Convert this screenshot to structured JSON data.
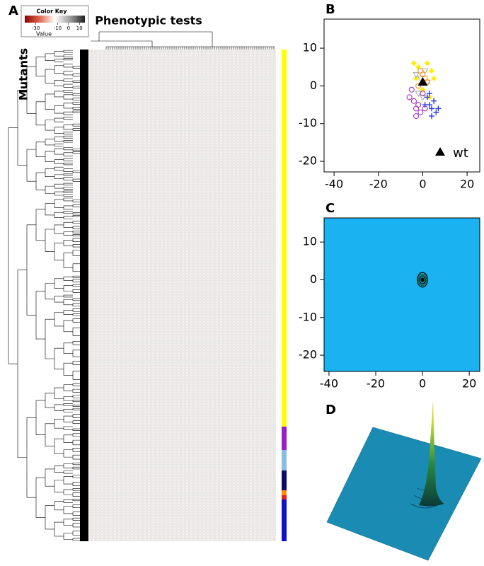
{
  "chart_data": [
    {
      "type": "heatmap",
      "panel_label": "A",
      "title": "Phenotypic tests",
      "ylabel": "Mutants",
      "color_key": {
        "title": "Color Key",
        "xlabel": "Value",
        "xlim": [
          -40,
          15
        ],
        "xticks": [
          -30,
          -10,
          0,
          10
        ],
        "colors": [
          "#8b0000",
          "#e06a50",
          "#ffffff",
          "#a0a0a0",
          "#202020"
        ]
      },
      "row_groups": [
        {
          "color": "#ffff00",
          "size": 533
        },
        {
          "color": "#9a1fc8",
          "size": 33
        },
        {
          "color": "#87bfe0",
          "size": 29
        },
        {
          "color": "#0a0a6e",
          "size": 28
        },
        {
          "color": "#ff8c00",
          "size": 7
        },
        {
          "color": "#e02020",
          "size": 6
        },
        {
          "color": "#1010d0",
          "size": 59
        }
      ]
    },
    {
      "type": "scatter",
      "panel_label": "B",
      "xlim": [
        -44.5,
        25.7
      ],
      "ylim": [
        -22.8,
        17.7
      ],
      "xticks": [
        -40,
        -20,
        0,
        20
      ],
      "yticks": [
        -20,
        -10,
        0,
        10
      ],
      "legend": "bottom-right",
      "series": [
        {
          "color": "#ffee00",
          "marker": "diamond",
          "x": [
            -4,
            -2,
            2,
            4,
            5,
            -3,
            0,
            3
          ],
          "y": [
            6,
            5,
            6,
            4,
            2,
            2,
            -1,
            -3
          ]
        },
        {
          "color": "#a8a8a8",
          "marker": "triangle-down",
          "x": [
            -3,
            -1,
            1,
            2,
            -2,
            0
          ],
          "y": [
            3,
            2,
            4,
            1,
            -2,
            -3
          ]
        },
        {
          "color": "#ff8c00",
          "marker": "circle",
          "x": [
            -1,
            0,
            1,
            2,
            -2
          ],
          "y": [
            4,
            3,
            2,
            1,
            0
          ]
        },
        {
          "color": "#a020c0",
          "marker": "circle",
          "x": [
            -6,
            -4,
            -3,
            -2,
            -1,
            0,
            1,
            -5,
            -3
          ],
          "y": [
            -3,
            -4,
            -6,
            -5,
            -7,
            -2,
            -6,
            -1,
            -8
          ]
        },
        {
          "color": "#2a3ae0",
          "marker": "plus",
          "x": [
            2,
            3,
            4,
            5,
            6,
            7,
            3,
            4,
            1
          ],
          "y": [
            -3,
            -5,
            -6,
            -4,
            -7,
            -6,
            -2,
            -8,
            -5
          ]
        },
        {
          "name": "wt",
          "color": "#000000",
          "marker": "triangle",
          "x": [
            0
          ],
          "y": [
            1
          ]
        }
      ]
    },
    {
      "type": "contour",
      "panel_label": "C",
      "xlim": [
        -42.1,
        24.5
      ],
      "ylim": [
        -24.3,
        16.4
      ],
      "xticks": [
        -40,
        -20,
        0,
        20
      ],
      "yticks": [
        -20,
        -10,
        0,
        10
      ],
      "background": "#1ab2f0",
      "peak_x": 0,
      "peak_y": 0
    },
    {
      "type": "surface",
      "panel_label": "D",
      "color": "#1a8cb4"
    }
  ]
}
